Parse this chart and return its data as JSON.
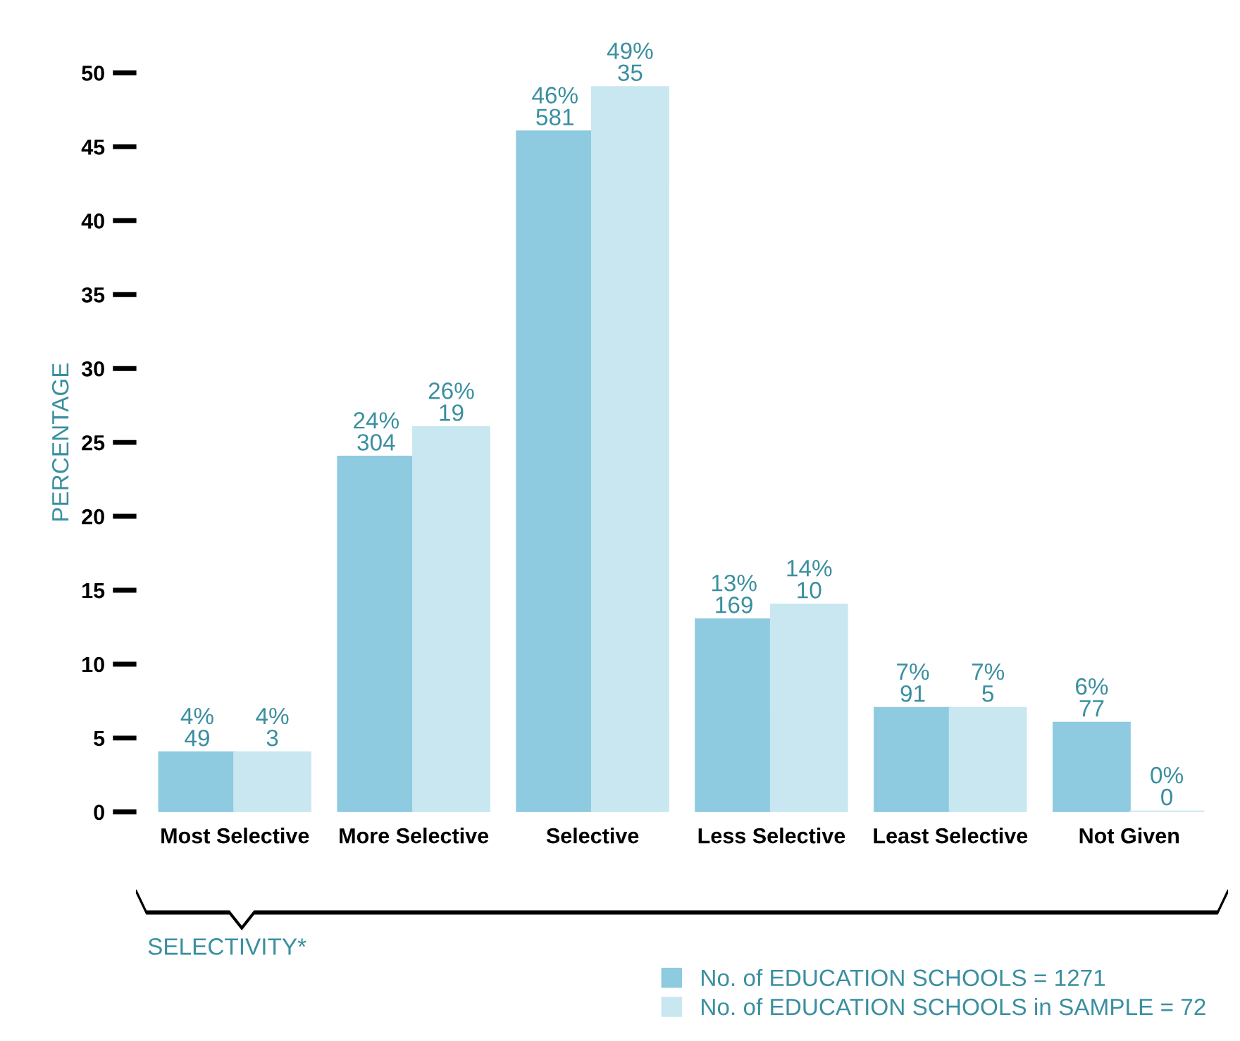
{
  "chart_data": {
    "type": "bar",
    "ylabel": "PERCENTAGE",
    "xlabel": "SELECTIVITY*",
    "categories": [
      "Most Selective",
      "More Selective",
      "Selective",
      "Less Selective",
      "Least Selective",
      "Not Given"
    ],
    "series": [
      {
        "name": "No. of EDUCATION SCHOOLS = 1271",
        "color": "#8ecae0",
        "values": [
          4,
          24,
          46,
          13,
          7,
          6
        ],
        "value_labels": [
          "4%\n49",
          "24%\n304",
          "46%\n581",
          "13%\n169",
          "7%\n91",
          "6%\n77"
        ]
      },
      {
        "name": "No. of EDUCATION SCHOOLS in SAMPLE = 72",
        "color": "#c9e7f0",
        "values": [
          4,
          26,
          49,
          14,
          7,
          0
        ],
        "value_labels": [
          "4%\n3",
          "26%\n19",
          "49%\n35",
          "14%\n10",
          "7%\n5",
          "0%\n0"
        ]
      }
    ],
    "ylim": [
      0,
      50
    ],
    "yticks": [
      0,
      5,
      10,
      15,
      20,
      25,
      30,
      35,
      40,
      45,
      50
    ],
    "grid": false,
    "legend": "bottom right"
  }
}
